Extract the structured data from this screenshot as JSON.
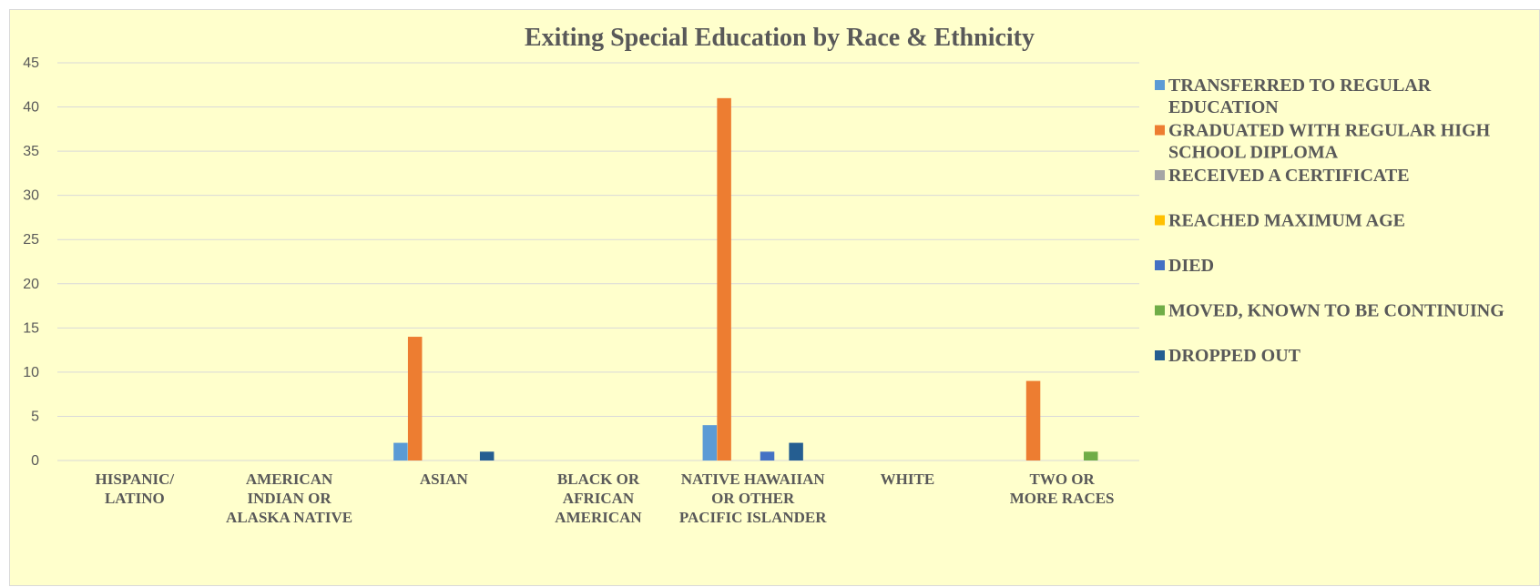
{
  "chart_data": {
    "type": "bar",
    "title": "Exiting Special Education by Race & Ethnicity",
    "xlabel": "",
    "ylabel": "",
    "ylim": [
      0,
      45
    ],
    "yticks": [
      0,
      5,
      10,
      15,
      20,
      25,
      30,
      35,
      40,
      45
    ],
    "grid": true,
    "legend_position": "right",
    "categories": [
      [
        "HISPANIC/",
        "LATINO"
      ],
      [
        "AMERICAN",
        "INDIAN OR",
        "ALASKA NATIVE"
      ],
      [
        "ASIAN"
      ],
      [
        "BLACK OR",
        "AFRICAN",
        "AMERICAN"
      ],
      [
        "NATIVE HAWAIIAN",
        "OR OTHER",
        "PACIFIC ISLANDER"
      ],
      [
        "WHITE"
      ],
      [
        "TWO OR",
        "MORE RACES"
      ]
    ],
    "series": [
      {
        "name": [
          "TRANSFERRED TO REGULAR",
          "EDUCATION"
        ],
        "color": "#5b9bd5",
        "values": [
          0,
          0,
          2,
          0,
          4,
          0,
          0
        ]
      },
      {
        "name": [
          "GRADUATED WITH REGULAR HIGH",
          "SCHOOL DIPLOMA"
        ],
        "color": "#ed7d31",
        "values": [
          0,
          0,
          14,
          0,
          41,
          0,
          9
        ]
      },
      {
        "name": [
          "RECEIVED A CERTIFICATE"
        ],
        "color": "#a5a5a5",
        "values": [
          0,
          0,
          0,
          0,
          0,
          0,
          0
        ]
      },
      {
        "name": [
          "REACHED MAXIMUM AGE"
        ],
        "color": "#ffc000",
        "values": [
          0,
          0,
          0,
          0,
          0,
          0,
          0
        ]
      },
      {
        "name": [
          "DIED"
        ],
        "color": "#4472c4",
        "values": [
          0,
          0,
          0,
          0,
          1,
          0,
          0
        ]
      },
      {
        "name": [
          "MOVED, KNOWN TO BE CONTINUING"
        ],
        "color": "#70ad47",
        "values": [
          0,
          0,
          0,
          0,
          0,
          0,
          1
        ]
      },
      {
        "name": [
          "DROPPED OUT"
        ],
        "color": "#255e91",
        "values": [
          0,
          0,
          1,
          0,
          2,
          0,
          0
        ]
      }
    ]
  }
}
